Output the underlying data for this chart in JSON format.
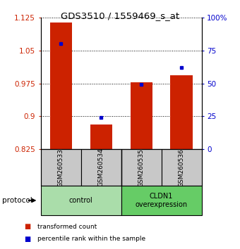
{
  "title": "GDS3510 / 1559469_s_at",
  "samples": [
    "GSM260533",
    "GSM260534",
    "GSM260535",
    "GSM260536"
  ],
  "red_values": [
    1.113,
    0.882,
    0.978,
    0.993
  ],
  "blue_values": [
    80,
    24,
    49,
    62
  ],
  "ylim_left": [
    0.825,
    1.125
  ],
  "ylim_right": [
    0,
    100
  ],
  "yticks_left": [
    0.825,
    0.9,
    0.975,
    1.05,
    1.125
  ],
  "yticks_right": [
    0,
    25,
    50,
    75,
    100
  ],
  "ytick_labels_left": [
    "0.825",
    "0.9",
    "0.975",
    "1.05",
    "1.125"
  ],
  "ytick_labels_right": [
    "0",
    "25",
    "50",
    "75",
    "100%"
  ],
  "groups": [
    {
      "label": "control",
      "samples": [
        0,
        1
      ],
      "color": "#aaddaa"
    },
    {
      "label": "CLDN1\noverexpression",
      "samples": [
        2,
        3
      ],
      "color": "#66cc66"
    }
  ],
  "protocol_label": "protocol",
  "legend_red": "transformed count",
  "legend_blue": "percentile rank within the sample",
  "bar_color": "#cc2200",
  "dot_color": "#0000cc",
  "bar_width": 0.55,
  "base_value": 0.825,
  "background_color": "#ffffff",
  "tick_color_left": "#cc2200",
  "tick_color_right": "#0000cc",
  "sample_box_color": "#c8c8c8"
}
